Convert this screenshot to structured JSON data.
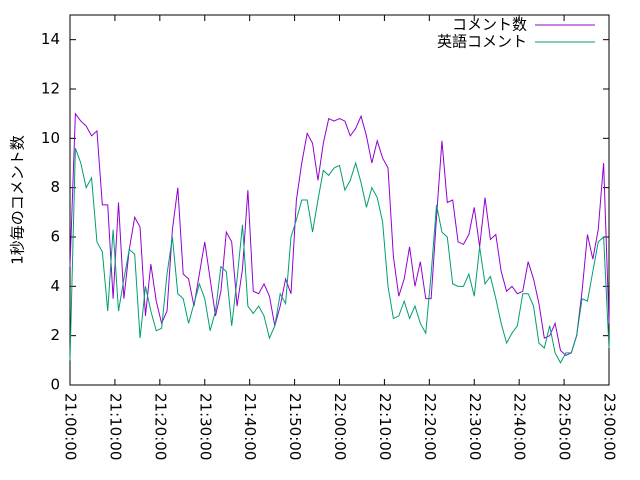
{
  "chart_data": {
    "type": "line",
    "y_label": "1秒毎のコメント数",
    "x": [
      "21:00:00",
      "21:01:12",
      "21:02:24",
      "21:03:36",
      "21:04:48",
      "21:06:00",
      "21:07:12",
      "21:08:24",
      "21:09:36",
      "21:10:48",
      "21:12:00",
      "21:13:12",
      "21:14:24",
      "21:15:36",
      "21:16:48",
      "21:18:00",
      "21:19:12",
      "21:20:24",
      "21:21:36",
      "21:22:48",
      "21:24:00",
      "21:25:12",
      "21:26:24",
      "21:27:36",
      "21:28:48",
      "21:30:00",
      "21:31:12",
      "21:32:24",
      "21:33:36",
      "21:34:48",
      "21:36:00",
      "21:37:12",
      "21:38:24",
      "21:39:36",
      "21:40:48",
      "21:42:00",
      "21:43:12",
      "21:44:24",
      "21:45:36",
      "21:46:48",
      "21:48:00",
      "21:49:12",
      "21:50:24",
      "21:51:36",
      "21:52:48",
      "21:54:00",
      "21:55:12",
      "21:56:24",
      "21:57:36",
      "21:58:48",
      "22:00:00",
      "22:01:12",
      "22:02:24",
      "22:03:36",
      "22:04:48",
      "22:06:00",
      "22:07:12",
      "22:08:24",
      "22:09:36",
      "22:10:48",
      "22:12:00",
      "22:13:12",
      "22:14:24",
      "22:15:36",
      "22:16:48",
      "22:18:00",
      "22:19:12",
      "22:20:24",
      "22:21:36",
      "22:22:48",
      "22:24:00",
      "22:25:12",
      "22:26:24",
      "22:27:36",
      "22:28:48",
      "22:30:00",
      "22:31:12",
      "22:32:24",
      "22:33:36",
      "22:34:48",
      "22:36:00",
      "22:37:12",
      "22:38:24",
      "22:39:36",
      "22:40:48",
      "22:42:00",
      "22:43:12",
      "22:44:24",
      "22:45:36",
      "22:46:48",
      "22:48:00",
      "22:49:12",
      "22:50:24",
      "22:51:36",
      "22:52:48",
      "22:54:00",
      "22:55:12",
      "22:56:24",
      "22:57:36",
      "22:58:48",
      "23:00:00"
    ],
    "series": [
      {
        "name": "コメント数",
        "color": "#9400d3",
        "values": [
          4.8,
          11,
          10.7,
          10.5,
          10.1,
          10.3,
          7.3,
          7.3,
          3.5,
          7.4,
          3.5,
          5.5,
          6.8,
          6.4,
          2.8,
          4.9,
          3.4,
          2.5,
          3.0,
          6.3,
          8.0,
          4.5,
          4.3,
          3.2,
          4.5,
          5.8,
          4.3,
          2.8,
          3.8,
          6.2,
          5.8,
          3.2,
          4.7,
          7.9,
          3.8,
          3.7,
          4.1,
          3.6,
          2.4,
          3.2,
          4.3,
          3.7,
          7.5,
          9.0,
          10.2,
          9.8,
          8.3,
          9.8,
          10.8,
          10.7,
          10.8,
          10.7,
          10.1,
          10.4,
          10.9,
          10.1,
          9.0,
          9.9,
          9.2,
          8.8,
          5.2,
          3.6,
          4.3,
          5.6,
          4.0,
          5.0,
          3.5,
          3.5,
          6.8,
          9.9,
          7.4,
          7.5,
          5.8,
          5.7,
          6.1,
          7.2,
          5.6,
          7.6,
          5.9,
          6.1,
          4.6,
          3.8,
          4.0,
          3.7,
          3.8,
          5.0,
          4.3,
          3.3,
          1.9,
          2.0,
          2.5,
          1.4,
          1.2,
          1.3,
          2.0,
          3.8,
          6.1,
          5.1,
          6.3,
          9.0,
          2.5
        ]
      },
      {
        "name": "英語コメント",
        "color": "#009e73",
        "values": [
          1.0,
          9.6,
          9.0,
          8.0,
          8.4,
          5.8,
          5.4,
          3.0,
          6.3,
          3.0,
          4.3,
          5.5,
          5.3,
          1.9,
          4.0,
          3.0,
          2.2,
          2.3,
          4.5,
          6.0,
          3.7,
          3.5,
          2.5,
          3.3,
          4.1,
          3.5,
          2.2,
          3.0,
          4.8,
          4.6,
          2.4,
          4.3,
          6.5,
          3.2,
          2.9,
          3.2,
          2.8,
          1.9,
          2.4,
          3.7,
          3.3,
          6.0,
          6.7,
          7.5,
          7.5,
          6.2,
          7.5,
          8.7,
          8.5,
          8.8,
          8.9,
          7.9,
          8.3,
          9.0,
          8.2,
          7.2,
          8.0,
          7.6,
          6.6,
          4.0,
          2.7,
          2.8,
          3.4,
          2.7,
          3.2,
          2.5,
          2.1,
          4.5,
          7.3,
          6.2,
          6.0,
          4.1,
          4.0,
          4.0,
          4.5,
          3.6,
          5.6,
          4.1,
          4.4,
          3.5,
          2.5,
          1.7,
          2.1,
          2.4,
          3.7,
          3.7,
          3.2,
          1.7,
          1.5,
          2.4,
          1.3,
          0.9,
          1.3,
          1.3,
          2.0,
          3.5,
          3.4,
          4.6,
          5.8,
          6.0,
          1.5
        ]
      }
    ],
    "xlim": [
      "21:00:00",
      "23:00:00"
    ],
    "xticks": [
      "21:00:00",
      "21:10:00",
      "21:20:00",
      "21:30:00",
      "21:40:00",
      "21:50:00",
      "22:00:00",
      "22:10:00",
      "22:20:00",
      "22:30:00",
      "22:40:00",
      "22:50:00",
      "23:00:00"
    ],
    "ylim": [
      0,
      15
    ],
    "yticks": [
      0,
      2,
      4,
      6,
      8,
      10,
      12,
      14
    ],
    "legend": "top-right"
  }
}
